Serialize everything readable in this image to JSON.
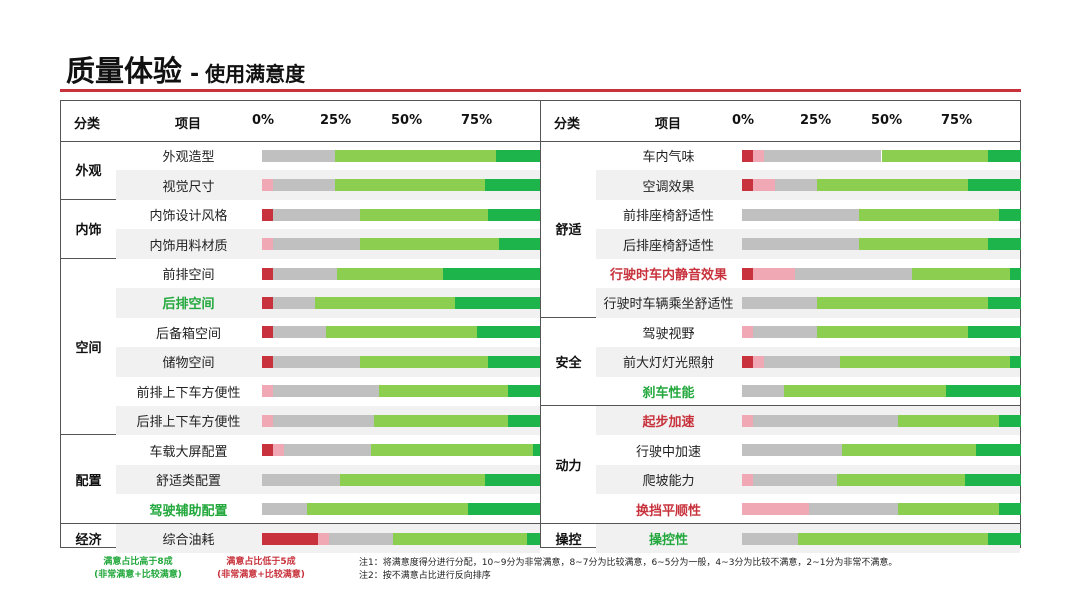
{
  "title": {
    "main": "质量体验",
    "dash": "-",
    "sub": "使用满意度"
  },
  "headers": {
    "category": "分类",
    "item": "项目",
    "ticks": [
      "0%",
      "25%",
      "50%",
      "75%"
    ]
  },
  "colors": {
    "very_unsat": "#c8323c",
    "unsat": "#f0a8b4",
    "neutral": "#c0c0c0",
    "sat": "#8ccf50",
    "very_sat": "#1cb44b",
    "accent_line": "#c8323c"
  },
  "chart_data": {
    "type": "bar",
    "orientation": "horizontal-stacked-100",
    "xlim": [
      0,
      100
    ],
    "ticks": [
      "0%",
      "25%",
      "50%",
      "75%"
    ],
    "segment_order": [
      "非常不满意",
      "比较不满意",
      "一般",
      "比较满意",
      "非常满意"
    ],
    "panels": [
      {
        "groups": [
          {
            "category": "外观",
            "items": [
              {
                "label": "外观造型",
                "style": "normal",
                "values": [
                  0,
                  0,
                  26,
                  58,
                  16
                ]
              },
              {
                "label": "视觉尺寸",
                "style": "normal",
                "values": [
                  0,
                  4,
                  22,
                  54,
                  20
                ]
              }
            ]
          },
          {
            "category": "内饰",
            "items": [
              {
                "label": "内饰设计风格",
                "style": "normal",
                "values": [
                  4,
                  0,
                  31,
                  46,
                  19
                ]
              },
              {
                "label": "内饰用料材质",
                "style": "normal",
                "values": [
                  0,
                  4,
                  31,
                  50,
                  15
                ]
              }
            ]
          },
          {
            "category": "空间",
            "items": [
              {
                "label": "前排空间",
                "style": "normal",
                "values": [
                  4,
                  0,
                  23,
                  38,
                  35
                ]
              },
              {
                "label": "后排空间",
                "style": "green",
                "values": [
                  4,
                  0,
                  15,
                  50,
                  31
                ]
              },
              {
                "label": "后备箱空间",
                "style": "normal",
                "values": [
                  4,
                  0,
                  19,
                  54,
                  23
                ]
              },
              {
                "label": "储物空间",
                "style": "normal",
                "values": [
                  4,
                  0,
                  31,
                  46,
                  19
                ]
              },
              {
                "label": "前排上下车方便性",
                "style": "normal",
                "values": [
                  0,
                  4,
                  38,
                  46,
                  12
                ]
              },
              {
                "label": "后排上下车方便性",
                "style": "normal",
                "values": [
                  0,
                  4,
                  36,
                  48,
                  12
                ]
              }
            ]
          },
          {
            "category": "配置",
            "items": [
              {
                "label": "车载大屏配置",
                "style": "normal",
                "values": [
                  4,
                  4,
                  31,
                  58,
                  3
                ]
              },
              {
                "label": "舒适类配置",
                "style": "normal",
                "values": [
                  0,
                  0,
                  28,
                  52,
                  20
                ]
              },
              {
                "label": "驾驶辅助配置",
                "style": "green",
                "values": [
                  0,
                  0,
                  16,
                  58,
                  26
                ]
              }
            ]
          },
          {
            "category": "经济",
            "items": [
              {
                "label": "综合油耗",
                "style": "normal",
                "values": [
                  20,
                  4,
                  23,
                  48,
                  5
                ]
              }
            ]
          }
        ]
      },
      {
        "groups": [
          {
            "category": "舒适",
            "items": [
              {
                "label": "车内气味",
                "style": "normal",
                "values": [
                  4,
                  4,
                  42,
                  38,
                  12
                ]
              },
              {
                "label": "空调效果",
                "style": "normal",
                "values": [
                  4,
                  8,
                  15,
                  54,
                  19
                ]
              },
              {
                "label": "前排座椅舒适性",
                "style": "normal",
                "values": [
                  0,
                  0,
                  42,
                  50,
                  8
                ]
              },
              {
                "label": "后排座椅舒适性",
                "style": "normal",
                "values": [
                  0,
                  0,
                  42,
                  46,
                  12
                ]
              },
              {
                "label": "行驶时车内静音效果",
                "style": "red",
                "values": [
                  4,
                  15,
                  42,
                  35,
                  4
                ]
              },
              {
                "label": "行驶时车辆乘坐舒适性",
                "style": "normal",
                "values": [
                  0,
                  0,
                  27,
                  61,
                  12
                ]
              }
            ]
          },
          {
            "category": "安全",
            "items": [
              {
                "label": "驾驶视野",
                "style": "normal",
                "values": [
                  0,
                  4,
                  23,
                  54,
                  19
                ]
              },
              {
                "label": "前大灯灯光照射",
                "style": "normal",
                "values": [
                  4,
                  4,
                  27,
                  61,
                  4
                ]
              },
              {
                "label": "刹车性能",
                "style": "green",
                "values": [
                  0,
                  0,
                  15,
                  58,
                  27
                ]
              }
            ]
          },
          {
            "category": "动力",
            "items": [
              {
                "label": "起步加速",
                "style": "red",
                "values": [
                  0,
                  4,
                  52,
                  36,
                  8
                ]
              },
              {
                "label": "行驶中加速",
                "style": "normal",
                "values": [
                  0,
                  0,
                  36,
                  48,
                  16
                ]
              },
              {
                "label": "爬坡能力",
                "style": "normal",
                "values": [
                  0,
                  4,
                  30,
                  46,
                  20
                ]
              },
              {
                "label": "换挡平顺性",
                "style": "red",
                "values": [
                  0,
                  24,
                  32,
                  36,
                  8
                ]
              }
            ]
          },
          {
            "category": "操控",
            "items": [
              {
                "label": "操控性",
                "style": "green",
                "values": [
                  0,
                  0,
                  20,
                  68,
                  12
                ]
              }
            ]
          }
        ]
      }
    ]
  },
  "legend": {
    "green_line1": "满意占比高于8成",
    "green_line2": "(非常满意+比较满意)",
    "red_line1": "满意占比低于5成",
    "red_line2": "(非常满意+比较满意)"
  },
  "notes": {
    "note1": "注1：将满意度得分进行分配，10~9分为非常满意，8~7分为比较满意，6~5分为一般，4~3分为比较不满意，2~1分为非常不满意。",
    "note2": "注2：按不满意占比进行反向排序"
  }
}
